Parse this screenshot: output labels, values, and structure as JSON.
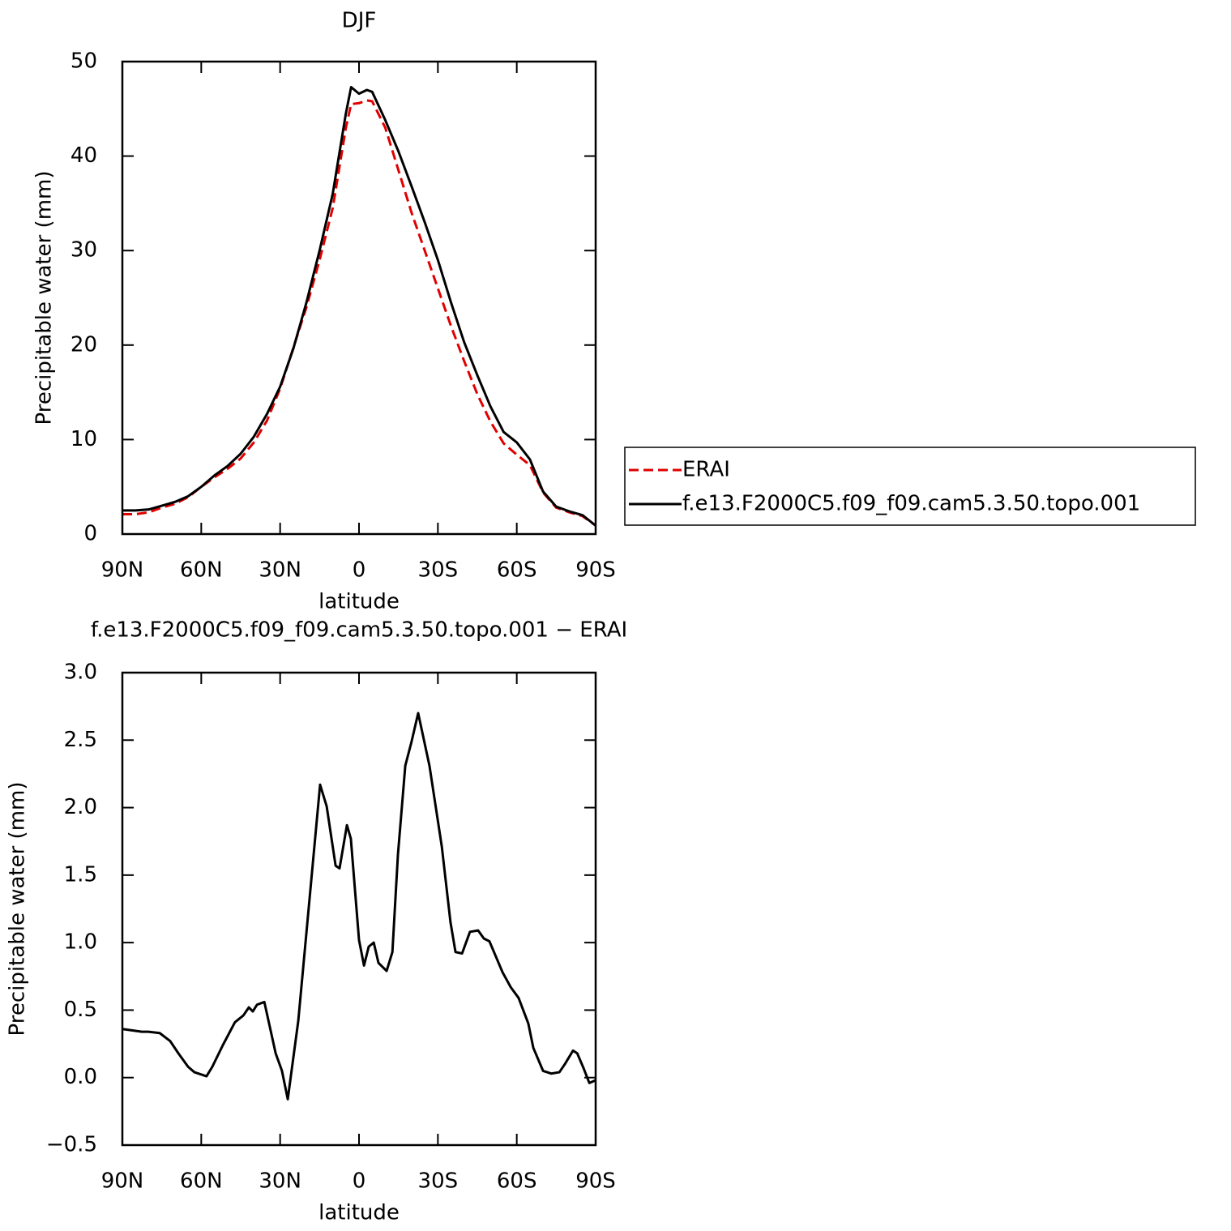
{
  "chart_data": [
    {
      "type": "line",
      "title": "DJF",
      "x_label": "latitude",
      "y_label": "Precipitable water (mm)",
      "xlim": [
        90,
        -90
      ],
      "ylim": [
        0,
        50
      ],
      "xticks": [
        {
          "value": 90,
          "label": "90N"
        },
        {
          "value": 60,
          "label": "60N"
        },
        {
          "value": 30,
          "label": "30N"
        },
        0,
        {
          "value": -30,
          "label": "30S"
        },
        {
          "value": -60,
          "label": "60S"
        },
        {
          "value": -90,
          "label": "90S"
        }
      ],
      "yticks": [
        0,
        10,
        20,
        30,
        40,
        50
      ],
      "legend": "right",
      "x": [
        90,
        85,
        80,
        75,
        70,
        65,
        60,
        55,
        50,
        45,
        40,
        35,
        30,
        25,
        20,
        15,
        10,
        5,
        3,
        0,
        -3,
        -5,
        -10,
        -15,
        -20,
        -25,
        -30,
        -35,
        -40,
        -45,
        -50,
        -55,
        -60,
        -65,
        -70,
        -75,
        -80,
        -85,
        -90
      ],
      "series": [
        {
          "name": "ERAI",
          "color": "#e00000",
          "dashed": true,
          "values": [
            2.1,
            2.1,
            2.3,
            2.8,
            3.2,
            3.9,
            5.0,
            6.0,
            6.9,
            8.0,
            9.7,
            12.0,
            15.4,
            19.7,
            24.0,
            29.0,
            34.5,
            43.0,
            45.5,
            45.6,
            45.9,
            45.8,
            43.0,
            38.5,
            34.0,
            30.0,
            26.0,
            22.0,
            18.3,
            14.8,
            11.9,
            9.6,
            8.4,
            7.3,
            4.4,
            2.8,
            2.3,
            1.9,
            0.9
          ]
        },
        {
          "name": "f.e13.F2000C5.f09_f09.cam5.3.50.topo.001",
          "color": "#000000",
          "dashed": false,
          "values": [
            2.5,
            2.5,
            2.6,
            3.0,
            3.4,
            4.0,
            5.0,
            6.2,
            7.2,
            8.5,
            10.3,
            12.7,
            15.6,
            19.6,
            24.5,
            30.0,
            36.0,
            44.5,
            47.3,
            46.6,
            47.0,
            46.8,
            43.8,
            40.5,
            36.8,
            33.0,
            29.0,
            24.5,
            20.3,
            16.8,
            13.5,
            10.8,
            9.7,
            7.9,
            4.5,
            2.9,
            2.4,
            2.0,
            0.9
          ]
        }
      ]
    },
    {
      "type": "line",
      "title": "f.e13.F2000C5.f09_f09.cam5.3.50.topo.001 − ERAI",
      "x_label": "latitude",
      "y_label": "Precipitable water (mm)",
      "xlim": [
        90,
        -90
      ],
      "ylim": [
        -0.5,
        3.0
      ],
      "xticks": [
        {
          "value": 90,
          "label": "90N"
        },
        {
          "value": 60,
          "label": "60N"
        },
        {
          "value": 30,
          "label": "30N"
        },
        0,
        {
          "value": -30,
          "label": "30S"
        },
        {
          "value": -60,
          "label": "60S"
        },
        {
          "value": -90,
          "label": "90S"
        }
      ],
      "yticks": [
        {
          "value": -0.5,
          "label": "−0.5"
        },
        {
          "value": 0,
          "label": "0.0"
        },
        0.5,
        {
          "value": 1,
          "label": "1.0"
        },
        1.5,
        {
          "value": 2,
          "label": "2.0"
        },
        2.5,
        {
          "value": 3,
          "label": "3.0"
        }
      ],
      "x": [
        90,
        82.6,
        80.1,
        75.8,
        71.8,
        68.7,
        65,
        62.6,
        58,
        55.8,
        51.8,
        47.2,
        44,
        41.9,
        40.4,
        38.8,
        36,
        31.7,
        29.3,
        27.1,
        23.1,
        19.4,
        14.8,
        12.3,
        8.9,
        7.4,
        4.6,
        3.1,
        0,
        -1.9,
        -3.7,
        -5.6,
        -7.4,
        -10.5,
        -12.7,
        -14.8,
        -17.6,
        -20,
        -22.5,
        -26.8,
        -31.5,
        -34.8,
        -36.7,
        -39.2,
        -42.2,
        -45.3,
        -47.5,
        -49.6,
        -54.6,
        -57.7,
        -60.7,
        -64.4,
        -66.3,
        -70,
        -73.1,
        -76.2,
        -78.3,
        -81.4,
        -83,
        -85.4,
        -87.6,
        -90
      ],
      "series": [
        {
          "color": "#000000",
          "dashed": false,
          "values": [
            0.36,
            0.34,
            0.34,
            0.33,
            0.27,
            0.18,
            0.08,
            0.04,
            0.01,
            0.08,
            0.24,
            0.41,
            0.46,
            0.52,
            0.49,
            0.54,
            0.56,
            0.18,
            0.05,
            -0.16,
            0.42,
            1.2,
            2.17,
            2.01,
            1.57,
            1.55,
            1.87,
            1.77,
            1.02,
            0.83,
            0.97,
            1.0,
            0.85,
            0.79,
            0.93,
            1.65,
            2.31,
            2.49,
            2.7,
            2.31,
            1.71,
            1.15,
            0.93,
            0.92,
            1.08,
            1.09,
            1.03,
            1.01,
            0.78,
            0.67,
            0.59,
            0.4,
            0.22,
            0.05,
            0.03,
            0.04,
            0.1,
            0.2,
            0.18,
            0.07,
            -0.04,
            -0.02
          ]
        }
      ]
    }
  ]
}
